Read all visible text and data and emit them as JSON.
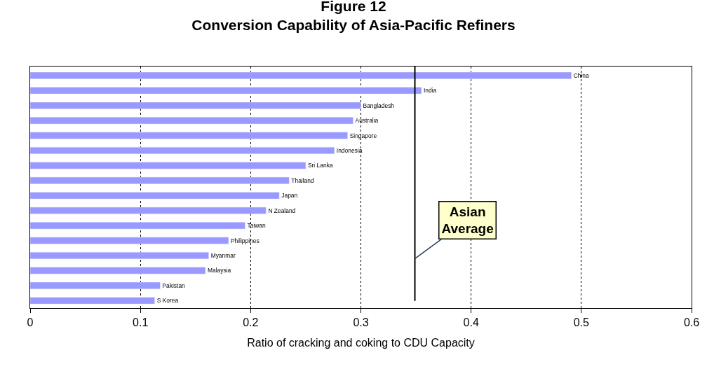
{
  "chart_data": {
    "type": "bar",
    "orientation": "horizontal",
    "title": "Figure 12\nConversion Capability of Asia-Pacific Refiners",
    "xlabel": "Ratio of cracking and coking to CDU Capacity",
    "categories": [
      "China",
      "India",
      "Bangladesh",
      "Australia",
      "Singapore",
      "Indonesia",
      "Sri Lanka",
      "Thailand",
      "Japan",
      "N Zealand",
      "Taiwan",
      "Philippines",
      "Myanmar",
      "Malaysia",
      "Pakistan",
      "S Korea"
    ],
    "values": [
      0.491,
      0.355,
      0.3,
      0.293,
      0.288,
      0.276,
      0.25,
      0.235,
      0.226,
      0.214,
      0.195,
      0.18,
      0.162,
      0.159,
      0.118,
      0.113
    ],
    "color": "#9999ff",
    "xlim": [
      0,
      0.6
    ],
    "xticks": [
      0,
      0.1,
      0.2,
      0.3,
      0.4,
      0.5,
      0.6
    ],
    "grid": "x",
    "legend": false,
    "tick_labels": "x",
    "ref_lines": [
      {
        "axis": "x",
        "value": 0.349,
        "label": "Asian Average",
        "color": "#000000"
      }
    ]
  }
}
